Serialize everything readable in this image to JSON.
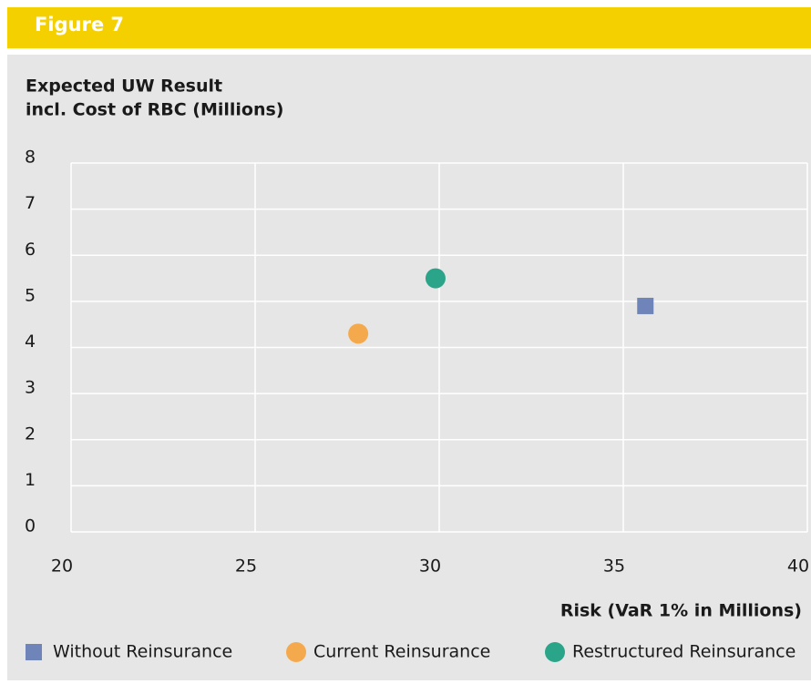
{
  "chart_data": {
    "type": "scatter",
    "title": "Figure 7",
    "ylabel": [
      "Expected UW Result",
      "incl. Cost of RBC (Millions)"
    ],
    "xlabel": "Risk (VaR 1% in Millions)",
    "xlim": [
      20,
      40
    ],
    "xticks": [
      20,
      25,
      30,
      35,
      40
    ],
    "ylim": [
      0,
      8
    ],
    "yticks": [
      0,
      1,
      2,
      3,
      4,
      5,
      6,
      7,
      8
    ],
    "grid": true,
    "series": [
      {
        "name": "Without Reinsurance",
        "color": "#6f84b8",
        "marker": "square",
        "x": [
          35.6
        ],
        "values": [
          4.9
        ]
      },
      {
        "name": "Current Reinsurance",
        "color": "#f5a94d",
        "marker": "circle",
        "x": [
          27.8
        ],
        "values": [
          4.3
        ]
      },
      {
        "name": "Restructured Reinsurance",
        "color": "#2aa58a",
        "marker": "circle",
        "x": [
          29.9
        ],
        "values": [
          5.5
        ]
      }
    ]
  }
}
